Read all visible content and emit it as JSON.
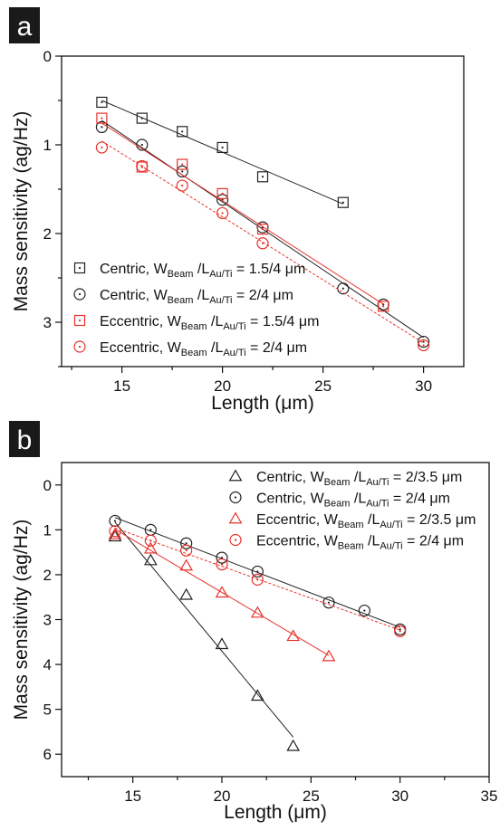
{
  "chart_data": [
    {
      "panel_label": "a",
      "type": "scatter",
      "xlabel": "Length (μm)",
      "ylabel": "Mass sensitivity (ag/Hz)",
      "xlim": [
        12,
        32
      ],
      "ylim": [
        0,
        3.5
      ],
      "y_inverted": true,
      "xticks": [
        15,
        20,
        25,
        30
      ],
      "yticks": [
        0,
        1,
        2,
        3
      ],
      "grid": false,
      "legend_position": "bottom-left",
      "series": [
        {
          "name": "Centric, W_Beam /L_Au/Ti = 1.5/4 μm",
          "legend": {
            "prefix": "Centric, W",
            "sub1": "Beam",
            "mid": " /L",
            "sub2": "Au/Ti",
            "suffix": " = 1.5/4 μm"
          },
          "marker": "square",
          "color": "#222222",
          "line": "solid",
          "x": [
            14,
            16,
            18,
            20,
            22,
            26
          ],
          "y": [
            0.52,
            0.7,
            0.85,
            1.03,
            1.36,
            1.65
          ]
        },
        {
          "name": "Centric, W_Beam /L_Au/Ti = 2/4 μm",
          "legend": {
            "prefix": "Centric, W",
            "sub1": "Beam",
            "mid": " /L",
            "sub2": "Au/Ti",
            "suffix": " = 2/4 μm"
          },
          "marker": "circle",
          "color": "#222222",
          "line": "solid",
          "x": [
            14,
            16,
            18,
            20,
            22,
            26,
            28,
            30
          ],
          "y": [
            0.8,
            1.0,
            1.3,
            1.62,
            1.93,
            2.62,
            2.8,
            3.22
          ]
        },
        {
          "name": "Eccentric, W_Beam /L_Au/Ti = 1.5/4 μm",
          "legend": {
            "prefix": "Eccentric, W",
            "sub1": "Beam",
            "mid": " /L",
            "sub2": "Au/Ti",
            "suffix": " = 1.5/4 μm"
          },
          "marker": "square",
          "color": "#e8312a",
          "line": "solid",
          "x": [
            14,
            16,
            18,
            20,
            22,
            28
          ],
          "y": [
            0.7,
            1.25,
            1.22,
            1.55,
            1.95,
            2.82
          ]
        },
        {
          "name": "Eccentric, W_Beam /L_Au/Ti = 2/4 μm",
          "legend": {
            "prefix": "Eccentric, W",
            "sub1": "Beam",
            "mid": " /L",
            "sub2": "Au/Ti",
            "suffix": " = 2/4 μm"
          },
          "marker": "circle",
          "color": "#e8312a",
          "line": "dotted",
          "x": [
            14,
            16,
            18,
            20,
            22,
            30
          ],
          "y": [
            1.03,
            1.24,
            1.46,
            1.77,
            2.11,
            3.26
          ]
        }
      ]
    },
    {
      "panel_label": "b",
      "type": "scatter",
      "xlabel": "Length (μm)",
      "ylabel": "Mass sensitivity (ag/Hz)",
      "xlim": [
        11,
        35
      ],
      "ylim": [
        -0.5,
        6.5
      ],
      "y_inverted": true,
      "xticks": [
        15,
        20,
        25,
        30,
        35
      ],
      "yticks": [
        0,
        1,
        2,
        3,
        4,
        5,
        6
      ],
      "grid": false,
      "legend_position": "top-right",
      "series": [
        {
          "name": "Centric, W_Beam /L_Au/Ti = 2/3.5 μm",
          "legend": {
            "prefix": "Centric, W",
            "sub1": "Beam",
            "mid": " /L",
            "sub2": "Au/Ti",
            "suffix": " = 2/3.5 μm"
          },
          "marker": "triangle",
          "color": "#222222",
          "line": "solid",
          "x": [
            14,
            16,
            18,
            20,
            22,
            24
          ],
          "y": [
            1.15,
            1.68,
            2.45,
            3.55,
            4.7,
            5.82
          ]
        },
        {
          "name": "Centric, W_Beam /L_Au/Ti = 2/4 μm",
          "legend": {
            "prefix": "Centric, W",
            "sub1": "Beam",
            "mid": " /L",
            "sub2": "Au/Ti",
            "suffix": " = 2/4 μm"
          },
          "marker": "circle",
          "color": "#222222",
          "line": "solid",
          "x": [
            14,
            16,
            18,
            20,
            22,
            26,
            28,
            30
          ],
          "y": [
            0.8,
            1.0,
            1.3,
            1.62,
            1.93,
            2.62,
            2.8,
            3.22
          ]
        },
        {
          "name": "Eccentric, W_Beam /L_Au/Ti = 2/3.5 μm",
          "legend": {
            "prefix": "Eccentric, W",
            "sub1": "Beam",
            "mid": " /L",
            "sub2": "Au/Ti",
            "suffix": " = 2/3.5 μm"
          },
          "marker": "triangle",
          "color": "#e8312a",
          "line": "solid",
          "x": [
            14,
            16,
            18,
            20,
            22,
            24,
            26
          ],
          "y": [
            1.1,
            1.42,
            1.8,
            2.4,
            2.85,
            3.37,
            3.82
          ]
        },
        {
          "name": "Eccentric, W_Beam /L_Au/Ti = 2/4 μm",
          "legend": {
            "prefix": "Eccentric, W",
            "sub1": "Beam",
            "mid": " /L",
            "sub2": "Au/Ti",
            "suffix": " = 2/4 μm"
          },
          "marker": "circle",
          "color": "#e8312a",
          "line": "dotted",
          "x": [
            14,
            16,
            18,
            20,
            22,
            30
          ],
          "y": [
            1.03,
            1.24,
            1.46,
            1.77,
            2.11,
            3.26
          ]
        }
      ]
    }
  ]
}
